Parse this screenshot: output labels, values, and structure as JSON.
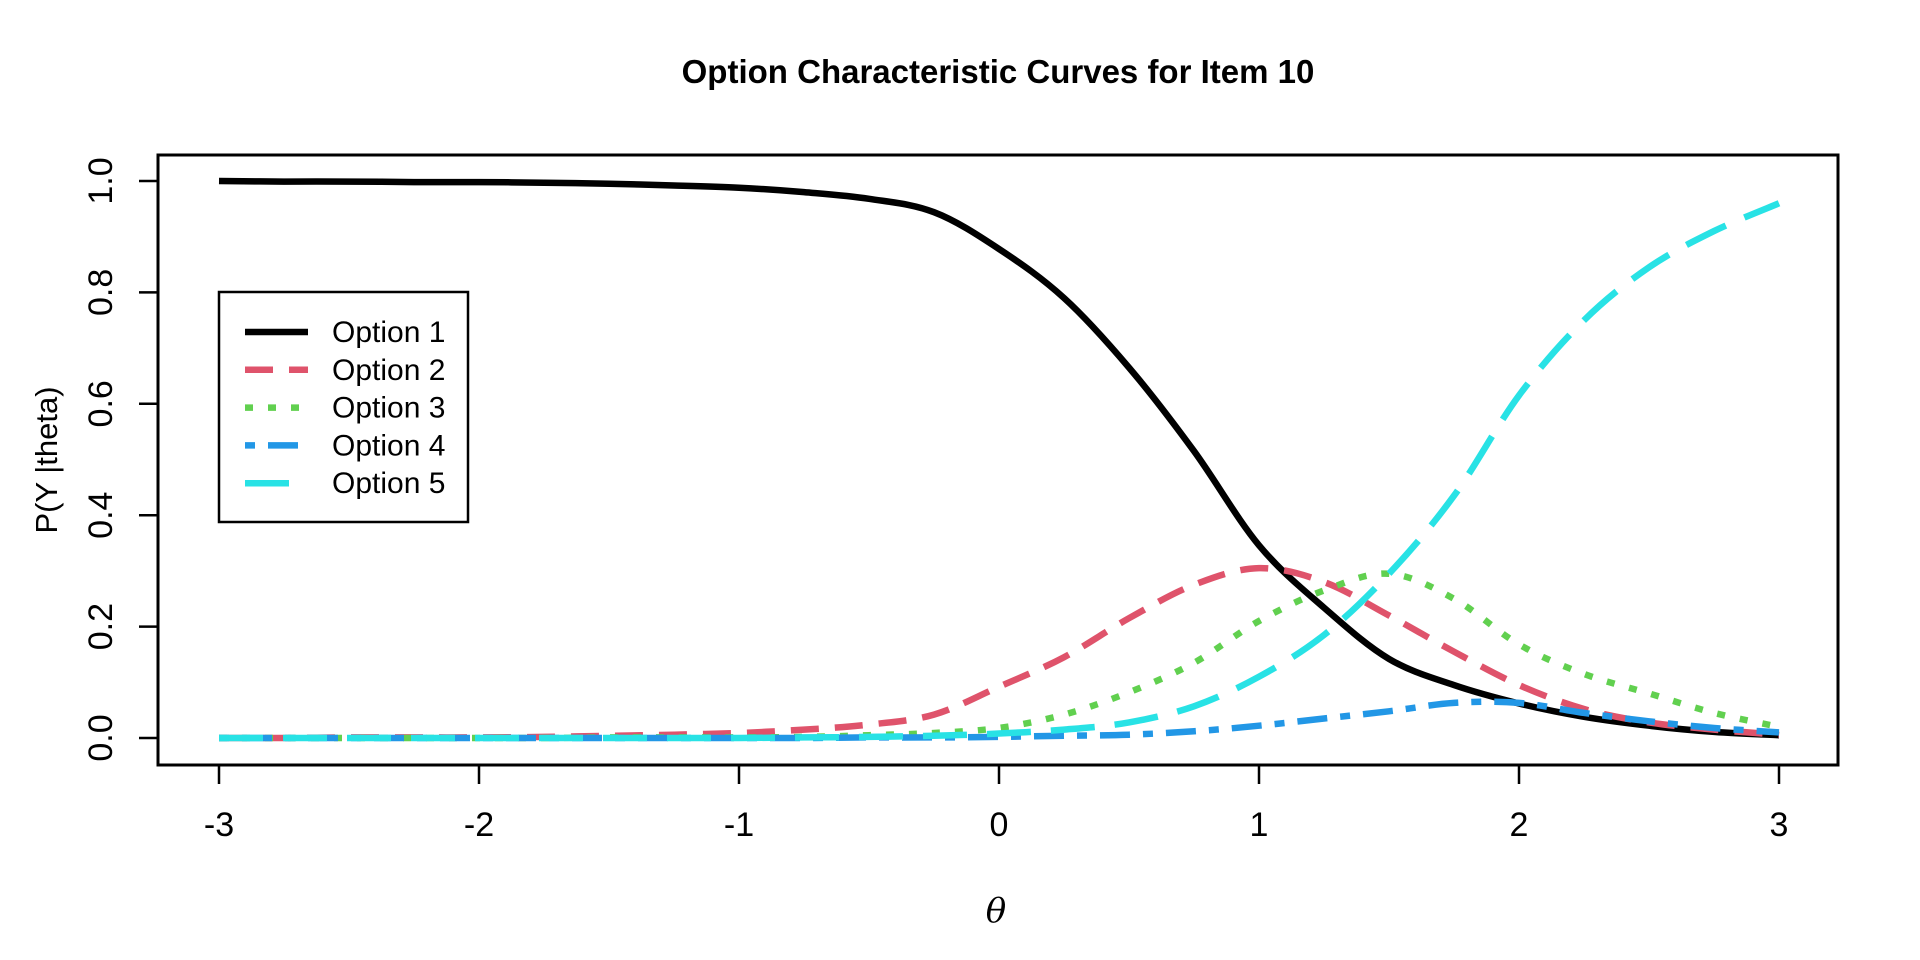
{
  "figure": {
    "background": "#FFFFFF"
  },
  "chart_data": {
    "type": "line",
    "title": "Option Characteristic Curves for Item 10",
    "xlabel": "θ",
    "ylabel": "P(Y |theta)",
    "xlim": [
      -3,
      3
    ],
    "ylim": [
      0,
      1
    ],
    "grid": false,
    "legend_position": "upper-left-inside",
    "x_ticks": [
      -3,
      -2,
      -1,
      0,
      1,
      2,
      3
    ],
    "x_tick_labels": [
      "-3",
      "-2",
      "-1",
      "0",
      "1",
      "2",
      "3"
    ],
    "y_ticks": [
      0,
      0.2,
      0.4,
      0.6,
      0.8,
      1
    ],
    "y_tick_labels": [
      "0.0",
      "0.2",
      "0.4",
      "0.6",
      "0.8",
      "1.0"
    ],
    "x": [
      -3,
      -2.75,
      -2.5,
      -2.25,
      -2,
      -1.75,
      -1.5,
      -1.25,
      -1,
      -0.75,
      -0.5,
      -0.25,
      0,
      0.25,
      0.5,
      0.75,
      1,
      1.25,
      1.5,
      1.75,
      2,
      2.25,
      2.5,
      2.75,
      3
    ],
    "series": [
      {
        "name": "Option 1",
        "color": "#000000",
        "linetype": "solid",
        "values": [
          1.0,
          0.999,
          0.999,
          0.998,
          0.998,
          0.997,
          0.995,
          0.992,
          0.988,
          0.98,
          0.968,
          0.944,
          0.878,
          0.79,
          0.665,
          0.515,
          0.346,
          0.234,
          0.142,
          0.095,
          0.062,
          0.038,
          0.022,
          0.011,
          0.005
        ]
      },
      {
        "name": "Option 2",
        "color": "#DF536B",
        "linetype": "dashed",
        "values": [
          0.0,
          0.0,
          0.001,
          0.001,
          0.001,
          0.002,
          0.004,
          0.006,
          0.009,
          0.015,
          0.024,
          0.042,
          0.092,
          0.145,
          0.215,
          0.275,
          0.305,
          0.28,
          0.22,
          0.155,
          0.095,
          0.052,
          0.028,
          0.015,
          0.006
        ]
      },
      {
        "name": "Option 3",
        "color": "#61D04F",
        "linetype": "dotted",
        "values": [
          0.0,
          0.0,
          0.0,
          0.0,
          0.0,
          0.0,
          0.001,
          0.001,
          0.001,
          0.002,
          0.005,
          0.009,
          0.018,
          0.042,
          0.082,
          0.135,
          0.21,
          0.265,
          0.295,
          0.25,
          0.168,
          0.115,
          0.08,
          0.045,
          0.02
        ]
      },
      {
        "name": "Option 4",
        "color": "#2297E6",
        "linetype": "dotdash",
        "values": [
          0.0,
          0.0,
          0.0,
          0.0,
          0.0,
          0.0,
          0.0,
          0.0,
          0.0,
          0.0,
          0.001,
          0.001,
          0.002,
          0.004,
          0.006,
          0.012,
          0.022,
          0.035,
          0.048,
          0.063,
          0.063,
          0.045,
          0.03,
          0.018,
          0.01
        ]
      },
      {
        "name": "Option 5",
        "color": "#28E2E5",
        "linetype": "longdash",
        "values": [
          0.0,
          0.0,
          0.0,
          0.0,
          0.0,
          0.0,
          0.0,
          0.0,
          0.0,
          0.001,
          0.002,
          0.004,
          0.008,
          0.015,
          0.028,
          0.057,
          0.11,
          0.185,
          0.295,
          0.435,
          0.615,
          0.75,
          0.845,
          0.91,
          0.96
        ]
      }
    ]
  }
}
